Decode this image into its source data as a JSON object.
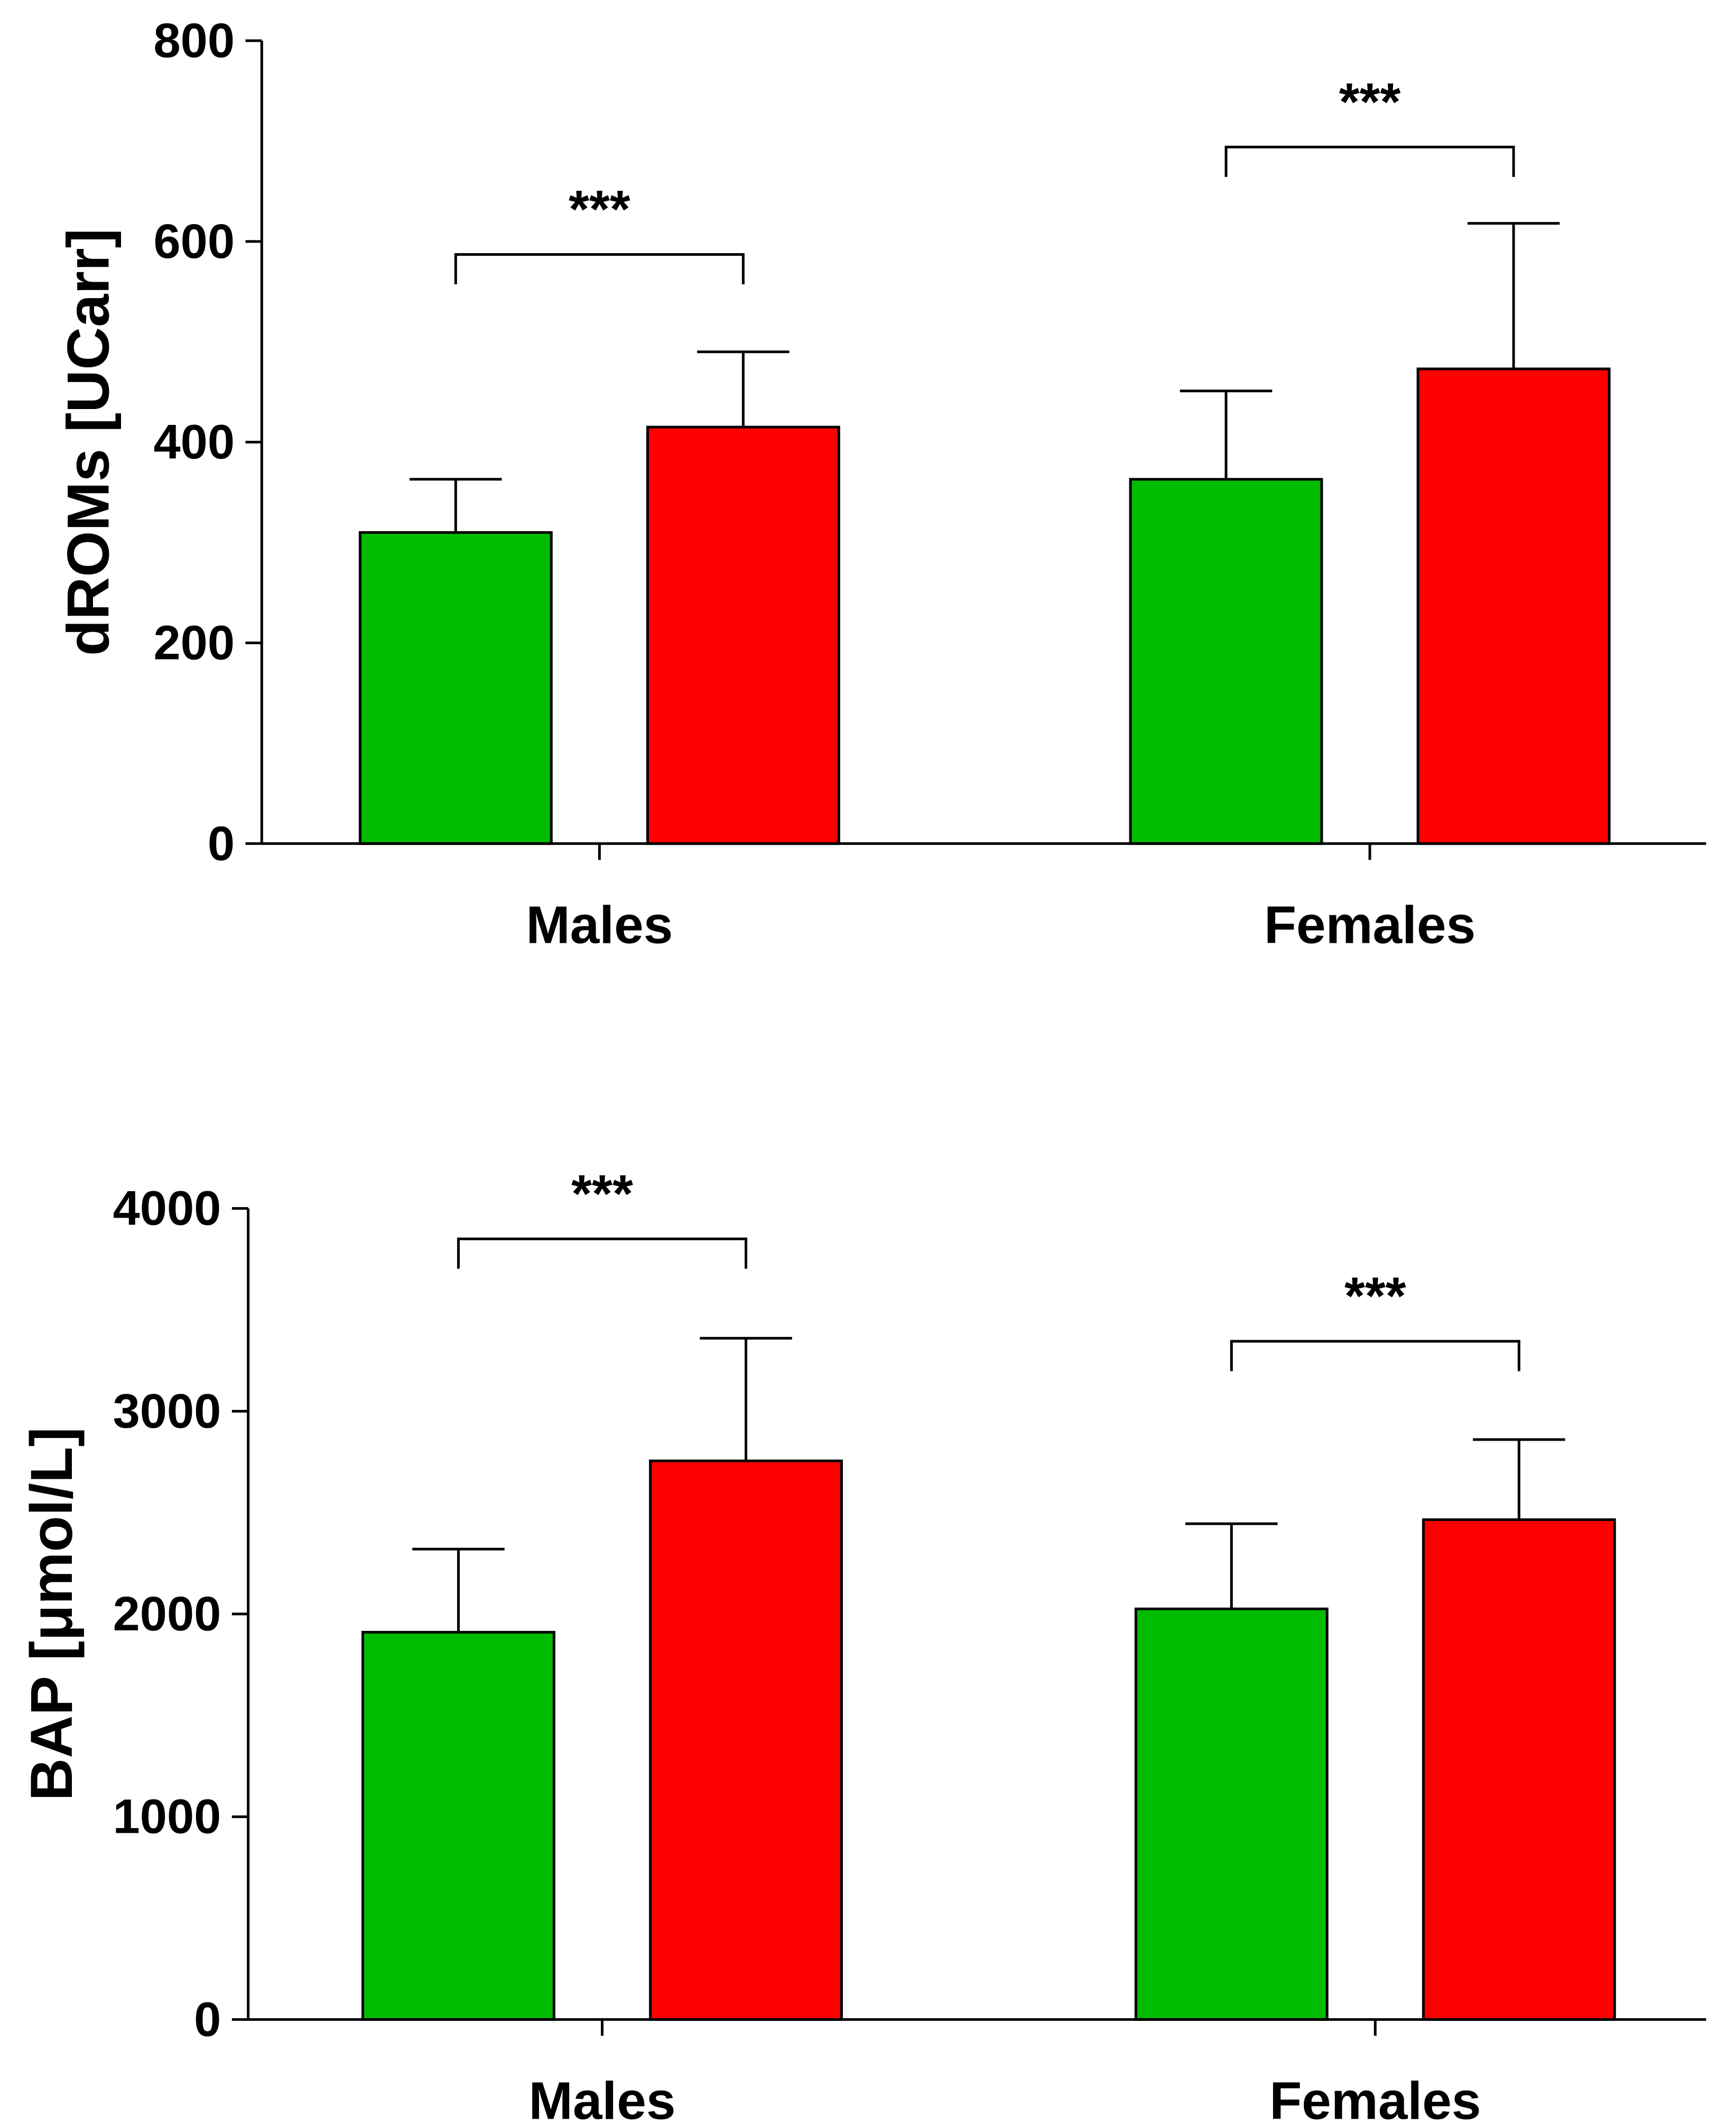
{
  "chart_data": [
    {
      "type": "bar",
      "categories": [
        "Males",
        "Females"
      ],
      "ylabel": "dROMs [UCarr]",
      "ylim": [
        0,
        800
      ],
      "yticks": [
        "0",
        "200",
        "400",
        "600",
        "800"
      ],
      "grid": false,
      "series": [
        {
          "color": "#00bb00",
          "values": [
            310,
            363
          ],
          "error": [
            53,
            88
          ]
        },
        {
          "color": "#ff0000",
          "values": [
            415,
            473
          ],
          "error": [
            75,
            145
          ]
        }
      ],
      "significance": [
        {
          "category": "Males",
          "label": "***",
          "y": 587
        },
        {
          "category": "Females",
          "label": "***",
          "y": 694
        }
      ]
    },
    {
      "type": "bar",
      "categories": [
        "Males",
        "Females"
      ],
      "ylabel": "BAP [μmol/L]",
      "ylim": [
        0,
        4000
      ],
      "yticks": [
        "0",
        "1000",
        "2000",
        "3000",
        "4000"
      ],
      "grid": false,
      "series": [
        {
          "color": "#00bb00",
          "values": [
            1910,
            2025
          ],
          "error": [
            410,
            420
          ]
        },
        {
          "color": "#ff0000",
          "values": [
            2755,
            2465
          ],
          "error": [
            605,
            395
          ]
        }
      ],
      "significance": [
        {
          "category": "Males",
          "label": "***",
          "y": 3850
        },
        {
          "category": "Females",
          "label": "***",
          "y": 3345
        }
      ]
    }
  ]
}
